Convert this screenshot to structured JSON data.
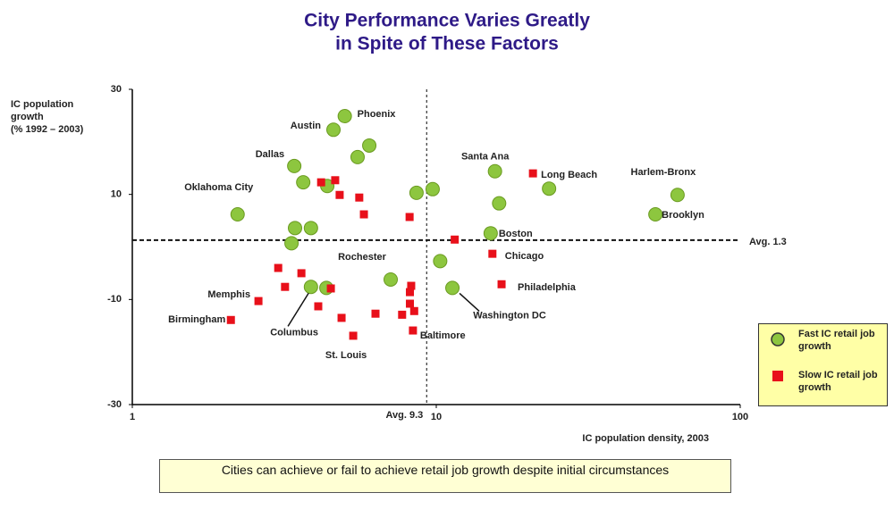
{
  "chart_data": {
    "type": "scatter",
    "title": [
      "City Performance Varies Greatly",
      "in Spite of These Factors"
    ],
    "ylabel": [
      "IC population",
      "growth",
      "(% 1992 – 2003)"
    ],
    "xlabel": "IC population density, 2003",
    "log_x": true,
    "xlim": [
      1,
      100
    ],
    "xticks": [
      1,
      10,
      100
    ],
    "ylim": [
      -30,
      30
    ],
    "yticks": [
      -30,
      -10,
      10,
      30
    ],
    "avg_x": {
      "value": 9.3,
      "label": "Avg. 9.3"
    },
    "avg_y": {
      "value": 1.3,
      "label": "Avg. 1.3"
    },
    "series": [
      {
        "name": "Fast IC retail job growth",
        "color": "#8dc63f",
        "marker": "circle",
        "x": [
          5.0,
          4.59,
          6.02,
          5.51,
          3.41,
          3.65,
          4.38,
          8.61,
          9.73,
          15.6,
          16.1,
          23.5,
          62.2,
          52.6,
          2.22,
          3.43,
          3.87,
          3.34,
          15.1,
          10.3,
          7.08,
          3.87,
          4.35,
          11.3
        ],
        "values": [
          24.9,
          22.3,
          19.3,
          17.1,
          15.4,
          12.3,
          11.6,
          10.3,
          11.0,
          14.4,
          8.3,
          11.1,
          9.9,
          6.2,
          6.2,
          3.6,
          3.6,
          0.7,
          2.6,
          -2.7,
          -6.2,
          -7.6,
          -7.8,
          -7.8
        ],
        "labels": [
          "Phoenix",
          "Austin",
          null,
          null,
          "Dallas",
          null,
          null,
          null,
          null,
          "Santa Ana",
          null,
          "Long Beach",
          "Harlem-Bronx",
          "Brooklyn",
          "Oklahoma City",
          null,
          null,
          null,
          "Boston",
          null,
          "Rochester",
          null,
          "Columbus",
          "Washington DC"
        ]
      },
      {
        "name": "Slow IC retail job growth",
        "color": "#e8101a",
        "marker": "square",
        "x": [
          4.18,
          4.65,
          4.81,
          5.58,
          5.78,
          8.17,
          20.8,
          11.5,
          15.3,
          3.02,
          3.6,
          3.18,
          2.6,
          4.09,
          4.5,
          8.27,
          8.19,
          8.19,
          8.46,
          7.72,
          6.31,
          4.88,
          5.33,
          8.38,
          16.4,
          2.11
        ],
        "values": [
          12.3,
          12.7,
          9.9,
          9.4,
          6.2,
          5.7,
          14.0,
          1.4,
          -1.3,
          -4.0,
          -5.0,
          -7.6,
          -10.3,
          -11.3,
          -7.9,
          -7.4,
          -8.6,
          -10.8,
          -12.2,
          -12.9,
          -12.7,
          -13.5,
          -16.9,
          -15.9,
          -7.1,
          -13.9
        ],
        "labels": [
          null,
          null,
          null,
          null,
          null,
          null,
          null,
          null,
          "Chicago",
          null,
          null,
          null,
          "Memphis",
          null,
          null,
          null,
          null,
          null,
          null,
          null,
          null,
          null,
          "St. Louis",
          "Baltimore",
          "Philadelphia",
          "Birmingham"
        ]
      }
    ],
    "note": "Cities can achieve or fail to achieve retail job growth despite initial circumstances"
  }
}
